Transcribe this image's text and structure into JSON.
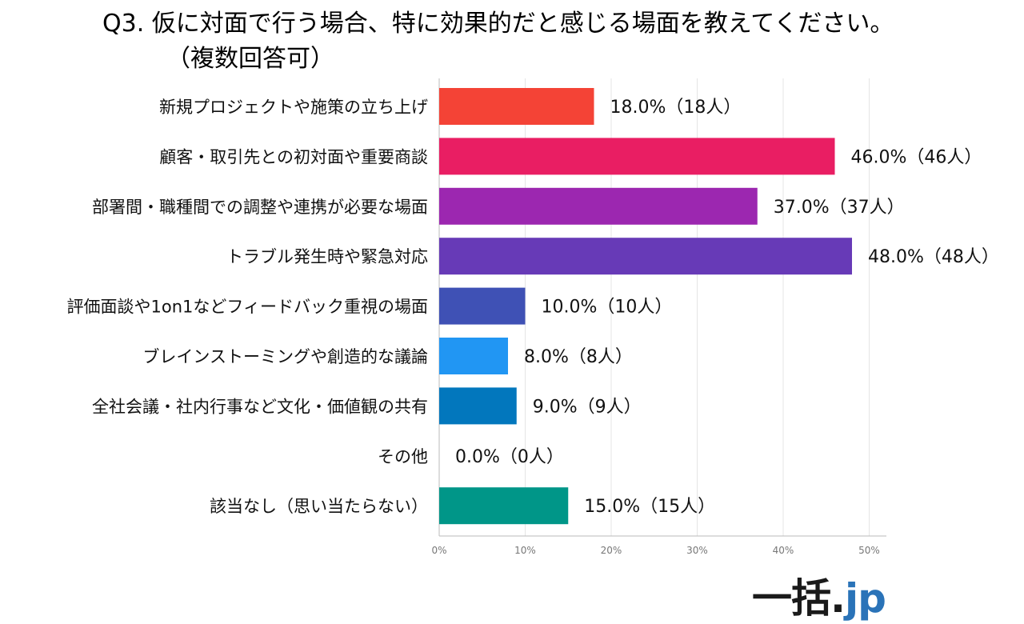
{
  "title": {
    "line1": "Q3.  仮に対面で行う場合、特に効果的だと感じる場面を教えてください。",
    "line2": "（複数回答可）"
  },
  "logo": {
    "part1": "一括",
    "part2": ".",
    "part3": "jp"
  },
  "chart_data": {
    "type": "bar",
    "orientation": "horizontal",
    "categories": [
      "新規プロジェクトや施策の立ち上げ",
      "顧客・取引先との初対面や重要商談",
      "部署間・職種間での調整や連携が必要な場面",
      "トラブル発生時や緊急対応",
      "評価面談や1on1などフィードバック重視の場面",
      "ブレインストーミングや創造的な議論",
      "全社会議・社内行事など文化・価値観の共有",
      "その他",
      "該当なし（思い当たらない）"
    ],
    "values": [
      18.0,
      46.0,
      37.0,
      48.0,
      10.0,
      8.0,
      9.0,
      0.0,
      15.0
    ],
    "data_labels": [
      "18.0%（18人）",
      "46.0%（46人）",
      "37.0%（37人）",
      "48.0%（48人）",
      "10.0%（10人）",
      "8.0%（8人）",
      "9.0%（9人）",
      "0.0%（0人）",
      "15.0%（15人）"
    ],
    "colors": [
      "#f44336",
      "#e91e63",
      "#9c27b0",
      "#673ab7",
      "#3f51b5",
      "#2196f3",
      "#0277bd",
      "#00bcd4",
      "#009688"
    ],
    "x_ticks": [
      "0%",
      "10%",
      "20%",
      "30%",
      "40%",
      "50%"
    ],
    "x_tick_values": [
      0,
      10,
      20,
      30,
      40,
      50
    ],
    "xlim": [
      0,
      52
    ],
    "grid": true,
    "legend": "none"
  }
}
